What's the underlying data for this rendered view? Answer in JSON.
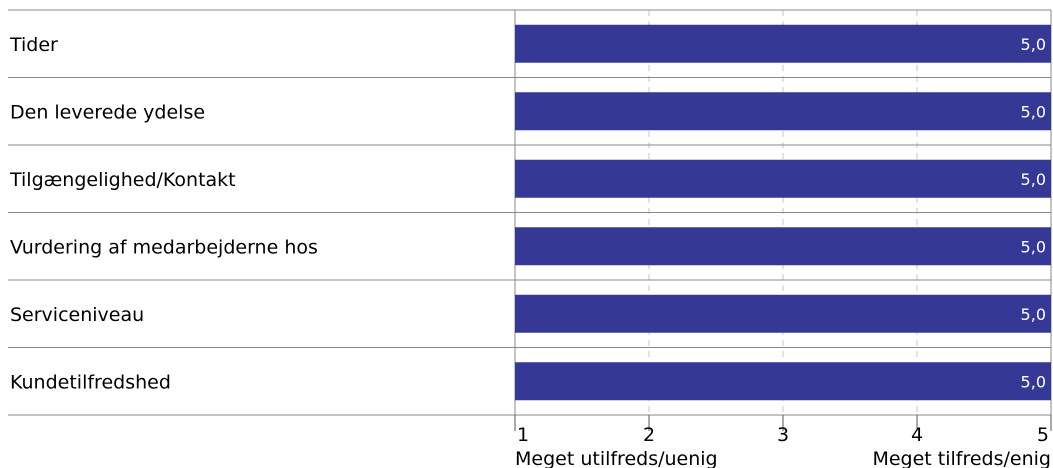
{
  "chart_data": {
    "type": "bar",
    "orientation": "horizontal",
    "categories": [
      "Tider",
      "Den leverede ydelse",
      "Tilgængelighed/Kontakt",
      "Vurdering af medarbejderne hos",
      "Serviceniveau",
      "Kundetilfredshed"
    ],
    "values": [
      5.0,
      5.0,
      5.0,
      5.0,
      5.0,
      5.0
    ],
    "value_labels": [
      "5,0",
      "5,0",
      "5,0",
      "5,0",
      "5,0",
      "5,0"
    ],
    "xlim": [
      1,
      5
    ],
    "xticks": [
      1,
      2,
      3,
      4,
      5
    ],
    "xtick_labels": [
      "1",
      "2",
      "3",
      "4",
      "5"
    ],
    "x_min_label": "Meget utilfreds/uenig",
    "x_max_label": "Meget tilfreds/enig",
    "bar_color": "#363896",
    "grid": true,
    "legend": "none"
  }
}
